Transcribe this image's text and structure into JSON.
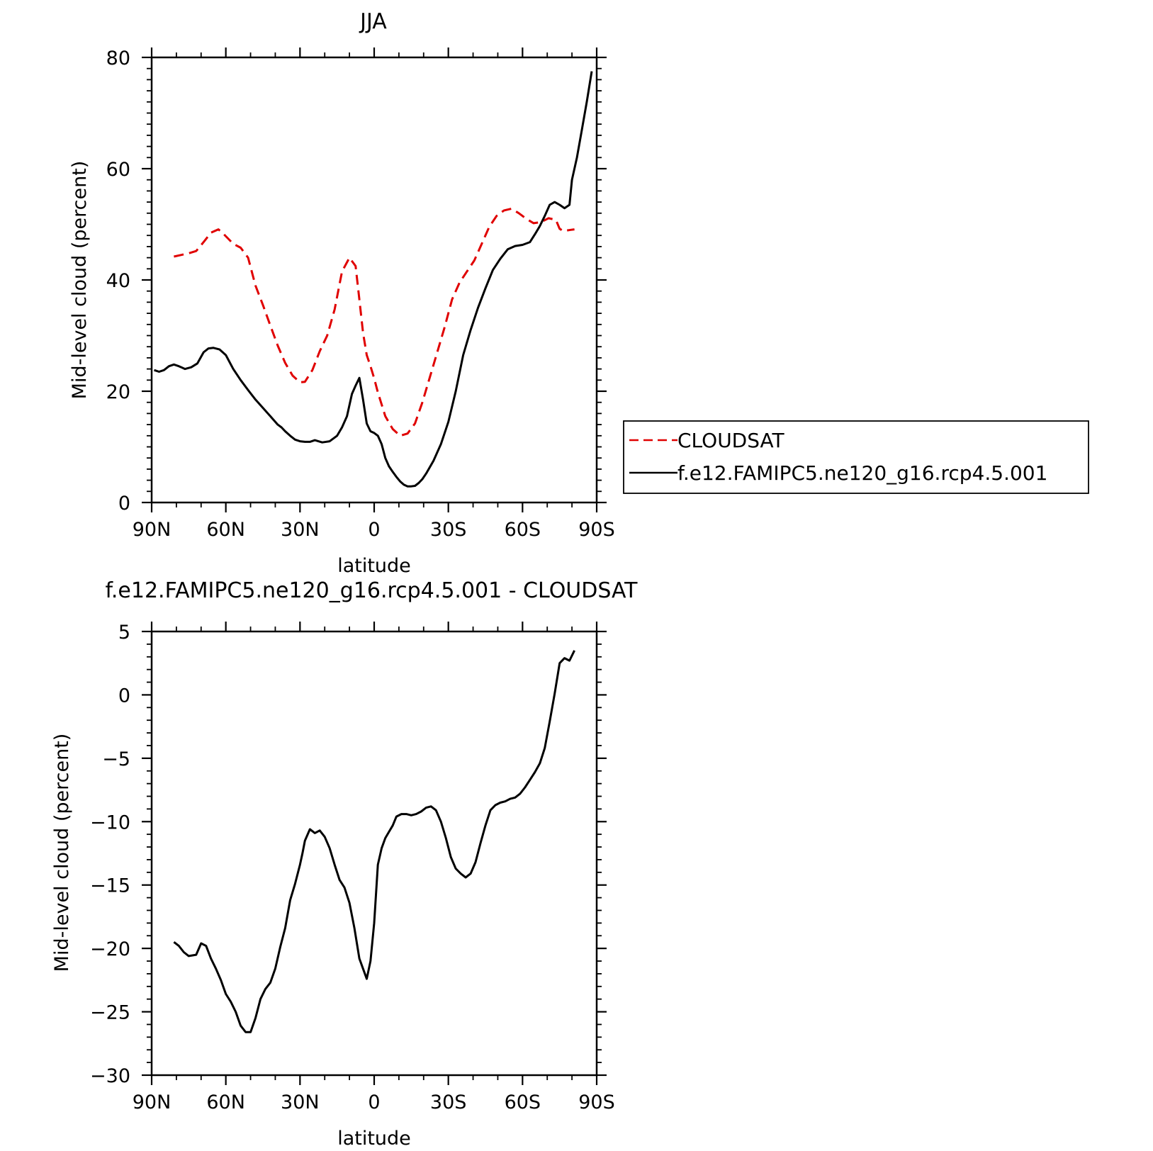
{
  "chart_data": [
    {
      "type": "line",
      "title": "JJA",
      "xlabel": "latitude",
      "ylabel": "Mid-level cloud (percent)",
      "xlim": [
        90,
        -90
      ],
      "ylim": [
        0,
        80
      ],
      "x_ticks": [
        90,
        60,
        30,
        0,
        -30,
        -60,
        -90
      ],
      "x_tick_labels": [
        "90N",
        "60N",
        "30N",
        "0",
        "30S",
        "60S",
        "90S"
      ],
      "y_ticks": [
        0,
        20,
        40,
        60,
        80
      ],
      "y_tick_labels": [
        "0",
        "20",
        "40",
        "60",
        "80"
      ],
      "legend": {
        "position": "right",
        "entries": [
          "CLOUDSAT",
          "f.e12.FAMIPC5.ne120_g16.rcp4.5.001"
        ]
      },
      "series": [
        {
          "name": "CLOUDSAT",
          "color": "#e00000",
          "style": "dashed",
          "x": [
            81,
            78,
            75,
            72,
            69,
            66,
            63,
            61,
            57,
            54,
            51,
            48,
            45,
            42,
            39,
            36,
            33,
            30,
            28,
            25,
            22,
            19,
            16,
            13,
            10,
            7.5,
            6,
            4.5,
            3,
            1.5,
            0,
            -1.5,
            -4.5,
            -7.5,
            -10.5,
            -13.5,
            -16.5,
            -19.5,
            -22.5,
            -25.5,
            -28.5,
            -31.5,
            -34.5,
            -37.5,
            -40.5,
            -43.5,
            -46.5,
            -49.5,
            -52.5,
            -55.5,
            -58.5,
            -61.5,
            -64.5,
            -67.5,
            -70.5,
            -73.5,
            -75,
            -76.5,
            -78,
            -79.5,
            -81
          ],
          "y": [
            44.2,
            44.5,
            44.8,
            45.2,
            46.8,
            48.5,
            49.1,
            48.3,
            46.5,
            45.8,
            44,
            39,
            35.5,
            31.8,
            28.2,
            25.1,
            22.8,
            21.6,
            21.7,
            23.8,
            27.2,
            30,
            34.7,
            41.5,
            44,
            42.5,
            36.5,
            30.5,
            26.5,
            24.5,
            22.3,
            19.8,
            15.5,
            13.2,
            12,
            12.4,
            14.2,
            18,
            22.5,
            27,
            31.5,
            36.5,
            39.5,
            41.5,
            43.5,
            46.5,
            49.5,
            51.5,
            52.5,
            52.8,
            52,
            51,
            50.2,
            50.4,
            51.1,
            50.8,
            49.2,
            48.8,
            48.9,
            49,
            49.1
          ]
        },
        {
          "name": "f.e12.FAMIPC5.ne120_g16.rcp4.5.001",
          "color": "#000000",
          "style": "solid",
          "x": [
            89,
            87,
            85,
            83,
            81,
            79,
            76.5,
            74,
            71.5,
            69,
            67,
            65,
            62.5,
            60,
            57,
            54,
            51,
            48,
            45,
            42,
            39,
            37.5,
            36,
            34,
            32,
            30,
            28,
            26,
            24,
            21,
            18,
            15,
            13,
            11,
            9,
            7.5,
            6,
            4.5,
            3,
            1.5,
            0,
            -1.5,
            -3,
            -4.5,
            -6,
            -7.5,
            -9,
            -10.5,
            -12,
            -13.5,
            -15,
            -16.5,
            -18,
            -19.5,
            -21,
            -24,
            -27,
            -30,
            -33,
            -36,
            -39,
            -42,
            -45,
            -48,
            -51,
            -54,
            -57,
            -60,
            -63,
            -65,
            -67,
            -69,
            -71,
            -73,
            -75,
            -77,
            -79,
            -80,
            -82,
            -84,
            -86,
            -88
          ],
          "y": [
            23.8,
            23.5,
            23.8,
            24.5,
            24.8,
            24.5,
            24,
            24.3,
            25,
            27,
            27.7,
            27.8,
            27.5,
            26.5,
            24,
            22,
            20.2,
            18.5,
            17,
            15.5,
            14,
            13.5,
            12.8,
            12,
            11.3,
            11,
            10.9,
            10.9,
            11.2,
            10.8,
            11,
            12,
            13.5,
            15.5,
            19.5,
            21,
            22.4,
            18.5,
            14.2,
            12.8,
            12.5,
            12,
            10.5,
            8,
            6.5,
            5.5,
            4.6,
            3.8,
            3.2,
            2.9,
            2.9,
            3,
            3.5,
            4.2,
            5.2,
            7.5,
            10.5,
            14.5,
            20,
            26.5,
            31,
            35,
            38.5,
            41.8,
            43.8,
            45.5,
            46.1,
            46.3,
            46.8,
            48.2,
            49.7,
            51.5,
            53.5,
            54,
            53.5,
            52.9,
            53.5,
            58,
            62,
            67,
            72,
            77.5
          ]
        }
      ]
    },
    {
      "type": "line",
      "title": "f.e12.FAMIPC5.ne120_g16.rcp4.5.001 - CLOUDSAT",
      "xlabel": "latitude",
      "ylabel": "Mid-level cloud (percent)",
      "xlim": [
        90,
        -90
      ],
      "ylim": [
        -30,
        5
      ],
      "x_ticks": [
        90,
        60,
        30,
        0,
        -30,
        -60,
        -90
      ],
      "x_tick_labels": [
        "90N",
        "60N",
        "30N",
        "0",
        "30S",
        "60S",
        "90S"
      ],
      "y_ticks": [
        -30,
        -25,
        -20,
        -15,
        -10,
        -5,
        0,
        5
      ],
      "y_tick_labels": [
        "−30",
        "−25",
        "−20",
        "−15",
        "−10",
        "−5",
        "0",
        "5"
      ],
      "series": [
        {
          "color": "#000000",
          "style": "solid",
          "x": [
            81,
            79,
            77,
            75,
            72,
            70,
            68,
            66,
            64,
            62,
            60,
            58,
            56,
            54,
            52,
            50,
            48,
            46,
            44,
            42,
            40,
            38,
            36,
            34,
            32,
            30,
            29,
            28,
            26,
            24,
            22,
            20,
            18,
            16,
            14,
            12,
            10,
            8,
            6,
            4.5,
            3,
            1.5,
            0,
            -1.5,
            -3,
            -4.5,
            -6,
            -7.5,
            -9,
            -11,
            -13,
            -15,
            -17,
            -19,
            -21,
            -23,
            -25,
            -27,
            -29,
            -31,
            -33,
            -35,
            -37,
            -39,
            -41,
            -43,
            -45,
            -47,
            -49,
            -51,
            -53,
            -55,
            -57,
            -59,
            -61,
            -63,
            -65,
            -67,
            -69,
            -71,
            -73,
            -75,
            -77,
            -79,
            -81
          ],
          "y": [
            -19.5,
            -19.8,
            -20.3,
            -20.6,
            -20.5,
            -19.6,
            -19.8,
            -20.8,
            -21.6,
            -22.5,
            -23.6,
            -24.2,
            -25,
            -26.1,
            -26.6,
            -26.6,
            -25.5,
            -24,
            -23.2,
            -22.7,
            -21.6,
            -19.9,
            -18.4,
            -16.2,
            -14.9,
            -13.4,
            -12.5,
            -11.5,
            -10.6,
            -10.9,
            -10.7,
            -11.2,
            -12.1,
            -13.4,
            -14.6,
            -15.2,
            -16.4,
            -18.4,
            -20.8,
            -21.6,
            -22.4,
            -21,
            -18,
            -13.4,
            -12.1,
            -11.3,
            -10.8,
            -10.3,
            -9.6,
            -9.4,
            -9.4,
            -9.5,
            -9.4,
            -9.2,
            -8.9,
            -8.8,
            -9.1,
            -10,
            -11.3,
            -12.8,
            -13.7,
            -14.1,
            -14.4,
            -14.1,
            -13.2,
            -11.7,
            -10.3,
            -9.1,
            -8.7,
            -8.5,
            -8.4,
            -8.2,
            -8.1,
            -7.8,
            -7.3,
            -6.7,
            -6.1,
            -5.4,
            -4.2,
            -2.1,
            0.1,
            2.5,
            2.9,
            2.7,
            3.5
          ]
        }
      ]
    }
  ]
}
